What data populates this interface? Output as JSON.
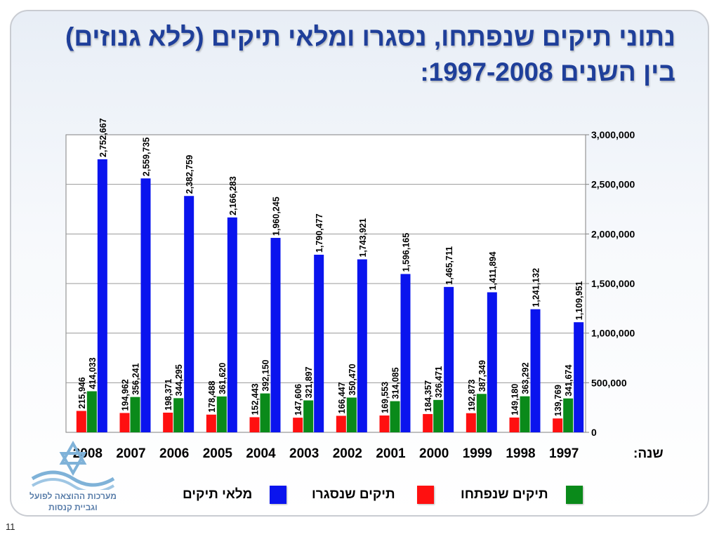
{
  "title_line1": "נתוני תיקים שנפתחו, נסגרו ומלאי תיקים (ללא גנוזים)",
  "title_line2": "בין השנים 1997-2008:",
  "chart_data": {
    "type": "bar",
    "categories": [
      "2008",
      "2007",
      "2006",
      "2005",
      "2004",
      "2003",
      "2002",
      "2001",
      "2000",
      "1999",
      "1998",
      "1997"
    ],
    "xlabel": "שנה:",
    "ylim": [
      0,
      3000000
    ],
    "yticks": [
      0,
      500000,
      1000000,
      1500000,
      2000000,
      2500000,
      3000000
    ],
    "ytick_labels": [
      "0",
      "500,000",
      "1,000,000",
      "1,500,000",
      "2,000,000",
      "2,500,000",
      "3,000,000"
    ],
    "grid": true,
    "legend_position": "bottom",
    "series": [
      {
        "name": "תיקים שנסגרו",
        "color": "#ff1010",
        "values": [
          215946,
          194962,
          198371,
          178488,
          152443,
          147606,
          166447,
          169553,
          184357,
          192873,
          149180,
          139769
        ],
        "labels": [
          "215,946",
          "194,962",
          "198,371",
          "178,488",
          "152,443",
          "147,606",
          "166,447",
          "169,553",
          "184,357",
          "192,873",
          "149,180",
          "139,769"
        ]
      },
      {
        "name": "תיקים שנפתחו",
        "color": "#0a8a1a",
        "values": [
          414033,
          356241,
          344295,
          361620,
          392150,
          321897,
          350470,
          314085,
          326471,
          387349,
          363292,
          341674
        ],
        "labels": [
          "414,033",
          "356,241",
          "344,295",
          "361,620",
          "392,150",
          "321,897",
          "350,470",
          "314,085",
          "326,471",
          "387,349",
          "363,292",
          "341,674"
        ]
      },
      {
        "name": "מלאי תיקים",
        "color": "#0a14ee",
        "values": [
          2752667,
          2559735,
          2382759,
          2166283,
          1960245,
          1790477,
          1743921,
          1596165,
          1465711,
          1411894,
          1241132,
          1109951
        ],
        "labels": [
          "2,752,667",
          "2,559,735",
          "2,382,759",
          "2,166,283",
          "1,960,245",
          "1,790,477",
          "1,743,921",
          "1,596,165",
          "1,465,711",
          "1,411,894",
          "1,241,132",
          "1,109,951"
        ]
      }
    ]
  },
  "legend": {
    "stock": {
      "label": "מלאי תיקים",
      "color": "#0a14ee"
    },
    "closed": {
      "label": "תיקים שנסגרו",
      "color": "#ff1010"
    },
    "opened": {
      "label": "תיקים שנפתחו",
      "color": "#0a8a1a"
    }
  },
  "logo": {
    "line1": "מערכות ההוצאה לפועל",
    "line2": "וגביית קנסות"
  },
  "page_number": "11"
}
